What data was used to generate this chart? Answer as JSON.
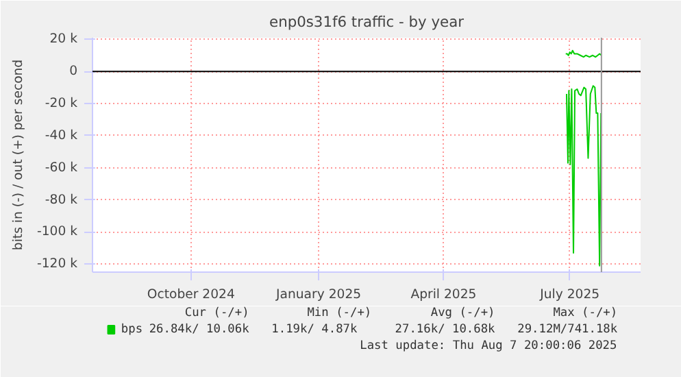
{
  "chart_data": {
    "type": "line",
    "title": "enp0s31f6 traffic - by year",
    "ylabel": "bits in (-) / out (+) per second",
    "xlim": [
      "2024-07-22",
      "2025-08-21"
    ],
    "ylim": [
      -125000,
      21000
    ],
    "xticks": [
      {
        "value": "2024-10-01",
        "label": "October 2024"
      },
      {
        "value": "2025-01-01",
        "label": "January 2025"
      },
      {
        "value": "2025-04-01",
        "label": "April 2025"
      },
      {
        "value": "2025-07-01",
        "label": "July 2025"
      }
    ],
    "yticks": [
      {
        "value": -120000,
        "label": "-120 k"
      },
      {
        "value": -100000,
        "label": "-100 k"
      },
      {
        "value": -80000,
        "label": "-80 k"
      },
      {
        "value": -60000,
        "label": "-60 k"
      },
      {
        "value": -40000,
        "label": "-40 k"
      },
      {
        "value": -20000,
        "label": "-20 k"
      },
      0,
      {
        "value": 20000,
        "label": "20 k"
      }
    ],
    "grid": true,
    "legend": "bottom",
    "series": [
      {
        "name": "bps",
        "color": "#00cc00",
        "x": [
          "2025-06-28T01:00",
          "2025-06-29T00:00",
          "2025-06-30T00:00",
          "2025-07-01T00:00",
          "2025-07-02T00:00",
          "2025-07-03T00:00",
          "2025-07-04T07:00",
          "2025-07-06T07:00",
          "2025-07-08T14:00",
          "2025-07-10T22:00",
          "2025-07-12T13:00",
          "2025-07-15T05:00",
          "2025-07-17T12:00",
          "2025-07-19T12:00",
          "2025-07-21T02:00",
          "2025-07-22T11:00",
          "2025-07-23T19:00"
        ],
        "values": [
          11000,
          11000,
          10000,
          12000,
          11000,
          13000,
          11000,
          11000,
          10000,
          9000,
          10000,
          9000,
          10000,
          9000,
          10000,
          11000,
          10000
        ]
      },
      {
        "color": "#00cc00",
        "x": [
          "2025-06-28T16:00",
          "2025-06-29T16:00",
          "2025-06-30T08:00",
          "2025-07-01T08:00",
          "2025-07-02T08:00",
          "2025-07-03T15:00",
          "2025-07-04T15:00",
          "2025-07-06T07:00",
          "2025-07-07T14:00",
          "2025-07-08T22:00",
          "2025-07-11T05:00",
          "2025-07-12T13:00",
          "2025-07-14T05:00",
          "2025-07-15T20:00",
          "2025-07-17T19:00",
          "2025-07-19T02:00",
          "2025-07-20T02:00",
          "2025-07-21T02:00",
          "2025-07-22T11:00",
          "2025-07-23T11:00"
        ],
        "values": [
          -14000,
          -57000,
          -12000,
          -58000,
          -11000,
          -113000,
          -12000,
          -11000,
          -14000,
          -15000,
          -10000,
          -11000,
          -54000,
          -14000,
          -9000,
          -10000,
          -26000,
          -26000,
          -121000,
          -26000
        ]
      }
    ],
    "ref_lines": [
      {
        "axis": "y",
        "value": 0,
        "color": "#000000"
      },
      {
        "axis": "x",
        "value": "2025-07-23T19:00",
        "color": "#999999"
      }
    ],
    "annotations": [
      "Cur (-/+)",
      "Min (-/+)",
      "Avg (-/+)",
      "Max (-/+)",
      "26.84k/ 10.06k",
      "1.19k/   4.87k",
      "27.16k/ 10.68k",
      "29.12M/741.18k",
      "Last update: Thu Aug  7 20:00:06 2025"
    ]
  }
}
